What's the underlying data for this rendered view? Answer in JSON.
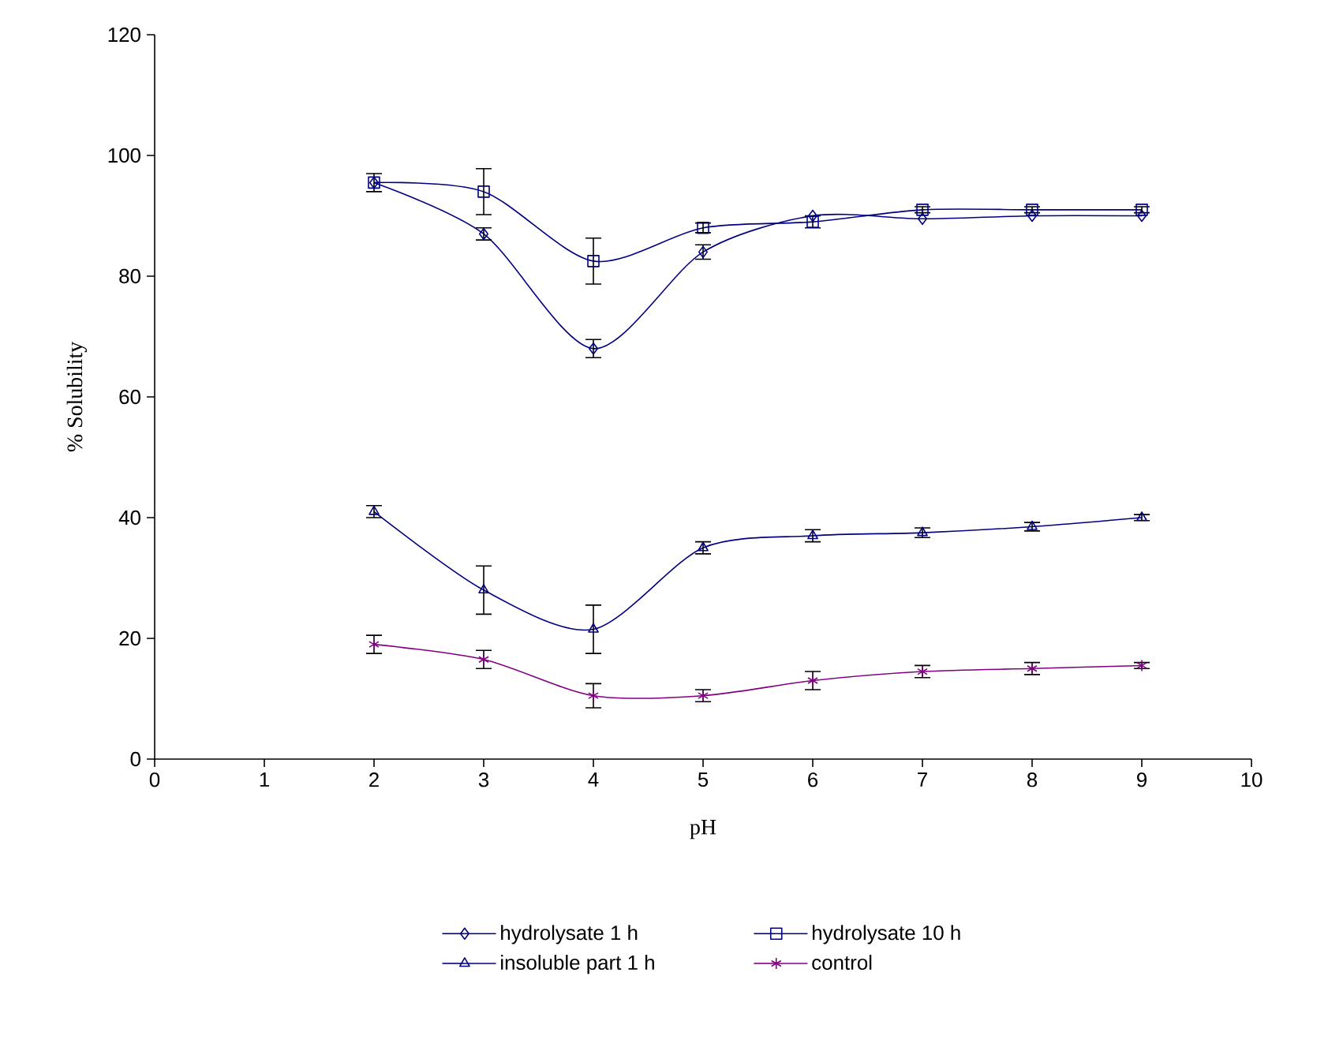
{
  "chart_data": {
    "type": "line",
    "xlabel": "pH",
    "ylabel": "% Solubility",
    "x": [
      2,
      3,
      4,
      5,
      6,
      7,
      8,
      9
    ],
    "series": [
      {
        "name": "hydrolysate 1 h",
        "color": "#000080",
        "marker": "diamond",
        "values": [
          95.5,
          87,
          68,
          84,
          90,
          89.5,
          90,
          90
        ],
        "errors": [
          1.5,
          1,
          1.5,
          1.2,
          null,
          null,
          null,
          null
        ]
      },
      {
        "name": "hydrolysate 10 h",
        "color": "#000080",
        "marker": "square",
        "values": [
          95.5,
          94,
          82.5,
          88,
          89,
          91,
          91,
          91
        ],
        "errors": [
          null,
          3.8,
          3.8,
          0.8,
          1,
          0.5,
          0.5,
          0.5
        ]
      },
      {
        "name": "insoluble part  1 h",
        "color": "#000080",
        "marker": "triangle",
        "values": [
          41,
          28,
          21.5,
          35,
          37,
          37.5,
          38.5,
          40
        ],
        "errors": [
          1,
          4,
          4,
          1,
          1,
          0.8,
          0.7,
          0.5
        ]
      },
      {
        "name": "control",
        "color": "#800080",
        "marker": "cross",
        "values": [
          19,
          16.5,
          10.5,
          10.5,
          13,
          14.5,
          15,
          15.5
        ],
        "errors": [
          1.5,
          1.5,
          2,
          1,
          1.5,
          1,
          1,
          0.5
        ]
      }
    ],
    "xlim": [
      0,
      10
    ],
    "xticks": [
      0,
      1,
      2,
      3,
      4,
      5,
      6,
      7,
      8,
      9,
      10
    ],
    "ylim": [
      0,
      120
    ],
    "yticks": [
      0,
      20,
      40,
      60,
      80,
      100,
      120
    ],
    "grid": false,
    "legend": "bottom"
  }
}
